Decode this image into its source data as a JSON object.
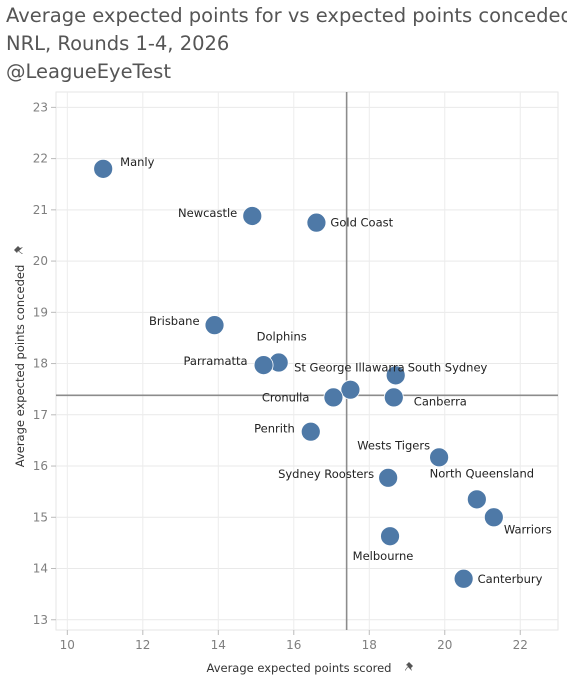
{
  "title": {
    "line1": "Average expected points for vs expected points conceded",
    "line2": "NRL, Rounds 1-4, 2026",
    "line3": "@LeagueEyeTest"
  },
  "chart_data": {
    "type": "scatter",
    "xlabel": "Average expected points scored",
    "ylabel": "Average expected points conceded",
    "xlim": [
      9.7,
      23.0
    ],
    "ylim": [
      12.8,
      23.3
    ],
    "xticks": [
      10,
      12,
      14,
      16,
      18,
      20,
      22
    ],
    "yticks": [
      13,
      14,
      15,
      16,
      17,
      18,
      19,
      20,
      21,
      22,
      23
    ],
    "reference_lines": {
      "x": 17.4,
      "y": 17.38
    },
    "marker_color": "#4e79a7",
    "points": [
      {
        "label": "Manly",
        "x": 10.95,
        "y": 21.8
      },
      {
        "label": "Newcastle",
        "x": 14.9,
        "y": 20.88
      },
      {
        "label": "Gold Coast",
        "x": 16.6,
        "y": 20.75
      },
      {
        "label": "Brisbane",
        "x": 13.9,
        "y": 18.75
      },
      {
        "label": "Dolphins",
        "x": 15.6,
        "y": 18.02
      },
      {
        "label": "Parramatta",
        "x": 15.2,
        "y": 17.97
      },
      {
        "label": "St George Illawarra",
        "x": 17.5,
        "y": 17.49
      },
      {
        "label": "South Sydney",
        "x": 18.7,
        "y": 17.77
      },
      {
        "label": "Cronulla",
        "x": 17.05,
        "y": 17.34
      },
      {
        "label": "Canberra",
        "x": 18.65,
        "y": 17.34
      },
      {
        "label": "Penrith",
        "x": 16.45,
        "y": 16.67
      },
      {
        "label": "Wests Tigers",
        "x": 19.85,
        "y": 16.17
      },
      {
        "label": "Sydney Roosters",
        "x": 18.5,
        "y": 15.77
      },
      {
        "label": "North Queensland",
        "x": 20.85,
        "y": 15.35
      },
      {
        "label": "Warriors",
        "x": 21.3,
        "y": 15.0
      },
      {
        "label": "Melbourne",
        "x": 18.55,
        "y": 14.63
      },
      {
        "label": "Canterbury",
        "x": 20.5,
        "y": 13.8
      }
    ]
  }
}
